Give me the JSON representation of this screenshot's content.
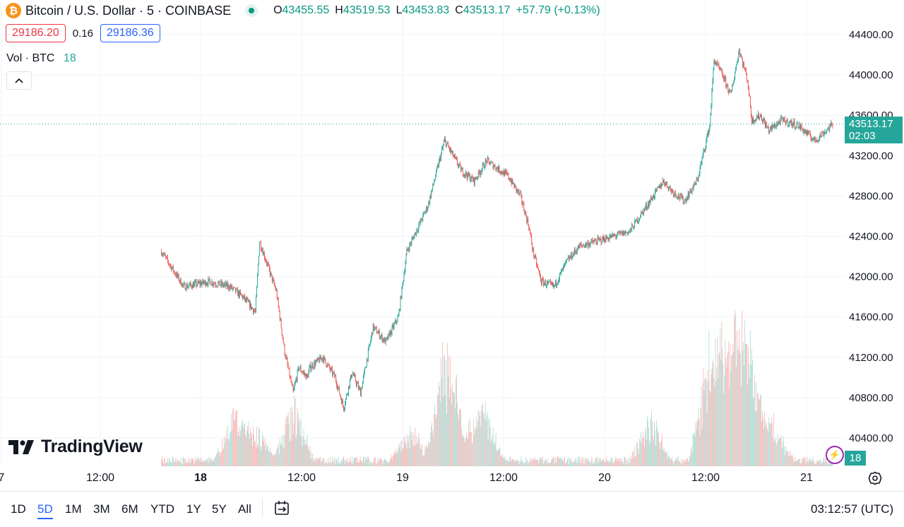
{
  "legend": {
    "logo_glyph": "₿",
    "symbol": "Bitcoin / U.S. Dollar · 5 · COINBASE",
    "open_label": "O",
    "open": "43455.55",
    "high_label": "H",
    "high": "43519.53",
    "low_label": "L",
    "low": "43453.83",
    "close_label": "C",
    "close": "43513.17",
    "change": "+57.79 (+0.13%)"
  },
  "quote": {
    "bid": "29186.20",
    "spread": "0.16",
    "ask": "29186.36"
  },
  "volume_legend": {
    "label": "Vol · BTC",
    "value": "18"
  },
  "logo": {
    "text": "TradingView"
  },
  "price_tag": {
    "price": "43513.17",
    "countdown": "02:03"
  },
  "volume_tag": "18",
  "time_axis": {
    "labels": [
      {
        "text": "7",
        "bold": false
      },
      {
        "text": "12:00",
        "bold": false
      },
      {
        "text": "18",
        "bold": true
      },
      {
        "text": "12:00",
        "bold": false
      },
      {
        "text": "19",
        "bold": false
      },
      {
        "text": "12:00",
        "bold": false
      },
      {
        "text": "20",
        "bold": false
      },
      {
        "text": "12:00",
        "bold": false
      },
      {
        "text": "21",
        "bold": false
      }
    ]
  },
  "bottom_bar": {
    "ranges": [
      "1D",
      "5D",
      "1M",
      "3M",
      "6M",
      "YTD",
      "1Y",
      "5Y",
      "All"
    ],
    "active_range": "5D",
    "clock": "03:12:57 (UTC)"
  },
  "colors": {
    "up": "#26a69a",
    "down": "#ef5350",
    "accent": "#2962ff",
    "last_price": "#26a69a"
  },
  "chart_data": {
    "type": "candlestick",
    "title": "Bitcoin / U.S. Dollar · 5 · COINBASE",
    "interval": "5",
    "price_range": [
      40250,
      44550
    ],
    "price_ticks": [
      "44400.00",
      "44000.00",
      "43600.00",
      "43200.00",
      "42800.00",
      "42400.00",
      "42000.00",
      "41600.00",
      "41200.00",
      "40800.00",
      "40400.00"
    ],
    "last_price": 43513.17,
    "price_scale": "right",
    "grid": true,
    "volume_pane": true,
    "time_range": [
      "17 19:20",
      "21 03:10"
    ],
    "close_path": {
      "t": [
        "17 19:20",
        "17 22:00",
        "18 01:00",
        "18 03:30",
        "18 05:00",
        "18 06:30",
        "18 07:00",
        "18 08:00",
        "18 09:00",
        "18 10:00",
        "18 11:00",
        "18 11:40",
        "18 12:40",
        "18 13:00",
        "18 14:30",
        "18 16:00",
        "18 17:00",
        "18 18:00",
        "18 19:00",
        "18 20:30",
        "18 22:00",
        "18 23:30",
        "19 00:30",
        "19 03:00",
        "19 05:00",
        "19 07:00",
        "19 08:30",
        "19 10:00",
        "19 12:30",
        "19 14:00",
        "19 15:00",
        "19 15:30",
        "19 16:30",
        "19 18:00",
        "19 19:30",
        "19 21:00",
        "19 23:00",
        "20 01:00",
        "20 03:00",
        "20 05:00",
        "20 07:00",
        "20 08:00",
        "20 09:30",
        "20 11:00",
        "20 12:30",
        "20 13:00",
        "20 14:00",
        "20 15:00",
        "20 16:00",
        "20 17:00",
        "20 17:30",
        "20 18:30",
        "20 19:30",
        "20 21:00",
        "20 23:00",
        "21 01:00",
        "21 03:10"
      ],
      "close": [
        42250,
        41900,
        41950,
        41900,
        41800,
        41650,
        42350,
        42100,
        41850,
        41250,
        40850,
        41100,
        41000,
        41100,
        41200,
        41000,
        40700,
        41050,
        40850,
        41500,
        41350,
        41600,
        42250,
        42700,
        43350,
        43050,
        42950,
        43150,
        43000,
        42800,
        42500,
        42250,
        41950,
        41900,
        42150,
        42300,
        42350,
        42400,
        42450,
        42700,
        42950,
        42850,
        42750,
        42950,
        43500,
        44150,
        44000,
        43800,
        44250,
        43950,
        43550,
        43600,
        43450,
        43550,
        43500,
        43350,
        43513
      ]
    },
    "volume": {
      "unit": "BTC",
      "spike_times": [
        "18 04:00",
        "18 06:30",
        "18 11:00",
        "19 01:00",
        "19 05:00",
        "19 06:00",
        "19 09:30",
        "20 05:30",
        "20 12:30",
        "20 14:00",
        "20 15:30",
        "20 16:30",
        "20 17:30",
        "20 20:00"
      ],
      "spike_values": [
        95,
        65,
        110,
        65,
        150,
        120,
        110,
        90,
        210,
        150,
        135,
        115,
        125,
        80
      ]
    }
  }
}
